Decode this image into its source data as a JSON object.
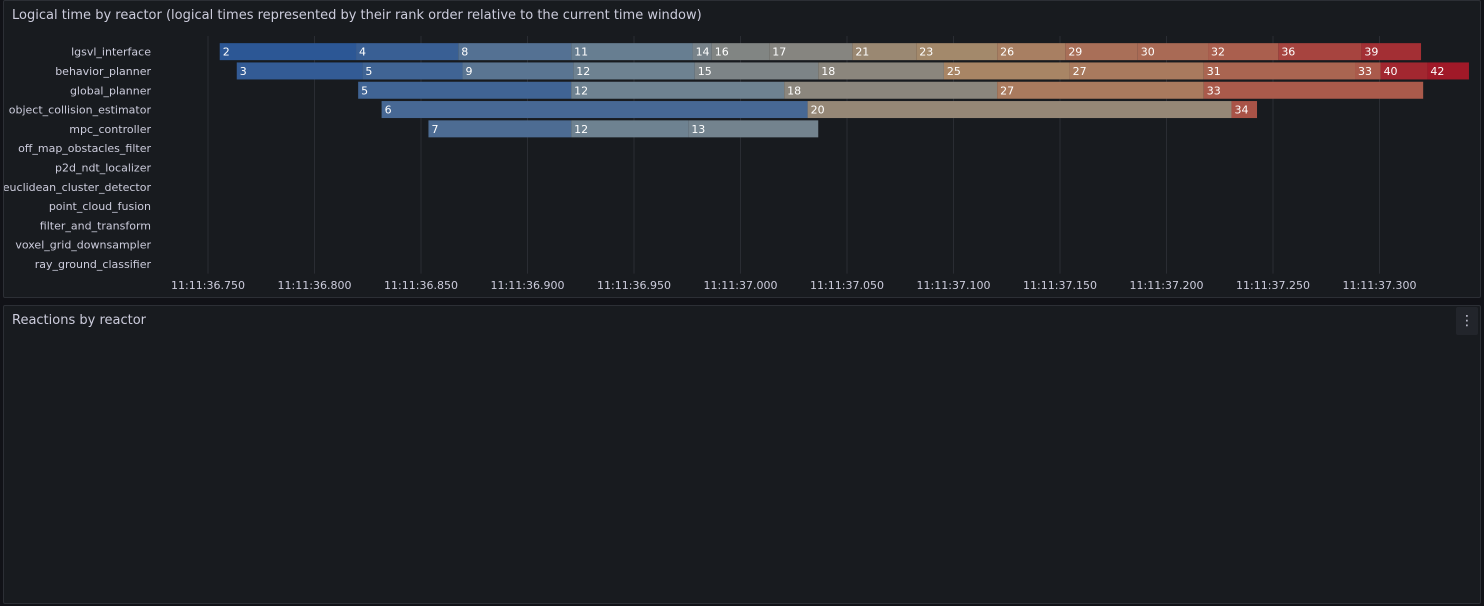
{
  "panels": {
    "logical": {
      "title": "Logical time by reactor (logical times represented by their rank order relative to the current time window)"
    },
    "reactions": {
      "title": "Reactions by reactor"
    }
  },
  "chart_data": [
    {
      "type": "bar",
      "layout": "horizontal-timeline",
      "title": "Logical time by reactor (logical times represented by their rank order relative to the current time window)",
      "x_unit": "seconds",
      "xlim": [
        36.745,
        37.31
      ],
      "x_ticks": [
        {
          "v": 36.75,
          "label": "11:11:36.750"
        },
        {
          "v": 36.8,
          "label": "11:11:36.800"
        },
        {
          "v": 36.85,
          "label": "11:11:36.850"
        },
        {
          "v": 36.9,
          "label": "11:11:36.900"
        },
        {
          "v": 36.95,
          "label": "11:11:36.950"
        },
        {
          "v": 37.0,
          "label": "11:11:37.000"
        },
        {
          "v": 37.05,
          "label": "11:11:37.050"
        },
        {
          "v": 37.1,
          "label": "11:11:37.100"
        },
        {
          "v": 37.15,
          "label": "11:11:37.150"
        },
        {
          "v": 37.2,
          "label": "11:11:37.200"
        },
        {
          "v": 37.25,
          "label": "11:11:37.250"
        },
        {
          "v": 37.3,
          "label": "11:11:37.300"
        }
      ],
      "categories": [
        "lgsvl_interface",
        "behavior_planner",
        "global_planner",
        "object_collision_estimator",
        "mpc_controller",
        "off_map_obstacles_filter",
        "p2d_ndt_localizer",
        "euclidean_cluster_detector",
        "point_cloud_fusion",
        "filter_and_transform",
        "voxel_grid_downsampler",
        "ray_ground_classifier"
      ],
      "rows": [
        {
          "name": "lgsvl_interface",
          "segs": [
            {
              "s": 36.7555,
              "e": 36.8195,
              "v": "2"
            },
            {
              "s": 36.8195,
              "e": 36.8675,
              "v": "4"
            },
            {
              "s": 36.8675,
              "e": 36.9205,
              "v": "8"
            },
            {
              "s": 36.9205,
              "e": 36.9775,
              "v": "11"
            },
            {
              "s": 36.9775,
              "e": 36.9865,
              "v": "14"
            },
            {
              "s": 36.9865,
              "e": 37.0135,
              "v": "16"
            },
            {
              "s": 37.0135,
              "e": 37.0525,
              "v": "17"
            },
            {
              "s": 37.0525,
              "e": 37.0825,
              "v": "21"
            },
            {
              "s": 37.0825,
              "e": 37.1205,
              "v": "23"
            },
            {
              "s": 37.1205,
              "e": 37.1525,
              "v": "26"
            },
            {
              "s": 37.1525,
              "e": 37.1865,
              "v": "29"
            },
            {
              "s": 37.1865,
              "e": 37.2195,
              "v": "30"
            },
            {
              "s": 37.2195,
              "e": 37.2525,
              "v": "32"
            },
            {
              "s": 37.2525,
              "e": 37.2915,
              "v": "36"
            },
            {
              "s": 37.2915,
              "e": 37.3195,
              "v": "39"
            }
          ]
        },
        {
          "name": "behavior_planner",
          "segs": [
            {
              "s": 36.7635,
              "e": 36.8225,
              "v": "3"
            },
            {
              "s": 36.8225,
              "e": 36.8695,
              "v": "5"
            },
            {
              "s": 36.8695,
              "e": 36.9215,
              "v": "9"
            },
            {
              "s": 36.9215,
              "e": 36.9785,
              "v": "12"
            },
            {
              "s": 36.9785,
              "e": 37.0365,
              "v": "15"
            },
            {
              "s": 37.0365,
              "e": 37.0955,
              "v": "18"
            },
            {
              "s": 37.0955,
              "e": 37.1545,
              "v": "25"
            },
            {
              "s": 37.1545,
              "e": 37.2175,
              "v": "27"
            },
            {
              "s": 37.2175,
              "e": 37.2885,
              "v": "31"
            },
            {
              "s": 37.2885,
              "e": 37.3005,
              "v": "33"
            },
            {
              "s": 37.3005,
              "e": 37.3225,
              "v": "40"
            },
            {
              "s": 37.3225,
              "e": 37.342,
              "v": "42"
            }
          ]
        },
        {
          "name": "global_planner",
          "segs": [
            {
              "s": 36.8205,
              "e": 36.9205,
              "v": "5"
            },
            {
              "s": 36.9205,
              "e": 37.0205,
              "v": "12"
            },
            {
              "s": 37.0205,
              "e": 37.1205,
              "v": "18"
            },
            {
              "s": 37.1205,
              "e": 37.2175,
              "v": "27"
            },
            {
              "s": 37.2175,
              "e": 37.3205,
              "v": "33"
            }
          ]
        },
        {
          "name": "object_collision_estimator",
          "segs": [
            {
              "s": 36.8315,
              "e": 37.0315,
              "v": "6"
            },
            {
              "s": 37.0315,
              "e": 37.2305,
              "v": "20"
            },
            {
              "s": 37.2305,
              "e": 37.2425,
              "v": "34"
            }
          ]
        },
        {
          "name": "mpc_controller",
          "segs": [
            {
              "s": 36.8535,
              "e": 36.9205,
              "v": "7"
            },
            {
              "s": 36.9205,
              "e": 36.9755,
              "v": "12"
            },
            {
              "s": 36.9755,
              "e": 37.0365,
              "v": "13"
            },
            {
              "s": 37.0365,
              "e": 37.0325,
              "v": ""
            },
            {
              "s": 37.0365,
              "e": 37.0325,
              "v": ""
            }
          ]
        }
      ]
    }
  ]
}
